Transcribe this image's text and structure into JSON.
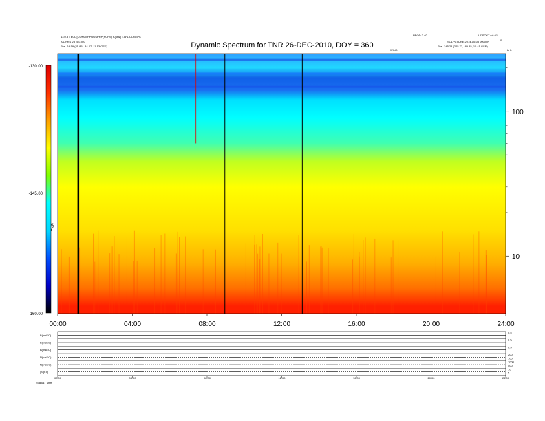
{
  "header": {
    "title": "Dynamic Spectrum for TNR 26-DEC-2010, DOY = 360",
    "left_line1": "13.0.3 • ECL [CONCEPPDOSPRP(PCPS) K(kHz) • AFL CONEPC",
    "left_line2": "ASJFRS 2 • BS.000",
    "left_line3": "Pos. 24.59 (25.85, -84.47, 11.13 GSE)",
    "center_small": "WIND",
    "right_top_left": "PROD 2.40",
    "right_top_right": "LZ SOFT v.6.01",
    "right_line2": "SOLPCTURE 2014-10-08 00000N",
    "right_line3": "Pos. 245.24 (225.77, -89.45, 10.41 GSE)",
    "units_label": "kHz",
    "corner_mark": "0"
  },
  "chart_data": {
    "type": "heatmap",
    "title": "Dynamic Spectrum for TNR 26-DEC-2010, DOY = 360",
    "x": {
      "ticks": [
        "00:00",
        "04:00",
        "08:00",
        "12:00",
        "16:00",
        "20:00",
        "24:00"
      ],
      "range_hours": [
        0,
        24
      ]
    },
    "y": {
      "scale": "log",
      "ticks": [
        10,
        100
      ],
      "range_khz": [
        4,
        250
      ]
    },
    "colorbar": {
      "ticks": [
        "-130.00",
        "-145.00",
        "-160.00"
      ],
      "range": [
        -160,
        -130
      ],
      "label": "TNR",
      "colors": [
        "#000000",
        "#0000c8",
        "#0050ff",
        "#00d8ff",
        "#00ffff",
        "#7fff00",
        "#ffff00",
        "#ffa000",
        "#ff3000",
        "#e00000"
      ]
    },
    "spectrum_bands": [
      {
        "freq_khz": 250,
        "color": "#30a0ff"
      },
      {
        "freq_khz": 200,
        "color": "#20d8ff"
      },
      {
        "freq_khz": 170,
        "color": "#1060e8"
      },
      {
        "freq_khz": 140,
        "color": "#1a6ef0"
      },
      {
        "freq_khz": 120,
        "color": "#00e0ff"
      },
      {
        "freq_khz": 90,
        "color": "#00ffff"
      },
      {
        "freq_khz": 60,
        "color": "#40ffb0"
      },
      {
        "freq_khz": 45,
        "color": "#c0ff20"
      },
      {
        "freq_khz": 30,
        "color": "#ffff00"
      },
      {
        "freq_khz": 15,
        "color": "#ffe000"
      },
      {
        "freq_khz": 9,
        "color": "#ffb000"
      },
      {
        "freq_khz": 6,
        "color": "#ff7000"
      },
      {
        "freq_khz": 4.5,
        "color": "#ff2000"
      }
    ],
    "vertical_lines_hours": [
      1.1,
      8.95,
      13.1
    ],
    "red_marker": {
      "hour": 7.4,
      "freq_top_khz": 250,
      "freq_bottom_khz": 60
    }
  },
  "panels": {
    "x_ticks": [
      "00:00",
      "04:00",
      "08:00",
      "12:00",
      "16:00",
      "20:00",
      "24:00"
    ],
    "rows": [
      {
        "label": "B( nsEC)",
        "right_ticks": [
          "0.5"
        ]
      },
      {
        "label": "B( nsEC)",
        "right_ticks": [
          "0.5"
        ]
      },
      {
        "label": "B( nsEC)",
        "right_ticks": [
          "0.5"
        ]
      },
      {
        "label": "N( nsEC)",
        "right_ticks": [
          "200",
          "100"
        ]
      },
      {
        "label": "N( nsEC)",
        "right_ticks": [
          "1000",
          "500"
        ]
      },
      {
        "label": "|B|(nT)",
        "right_ticks": [
          "10",
          "5"
        ]
      }
    ],
    "footer_label": "Status",
    "footer_value": "shift"
  }
}
